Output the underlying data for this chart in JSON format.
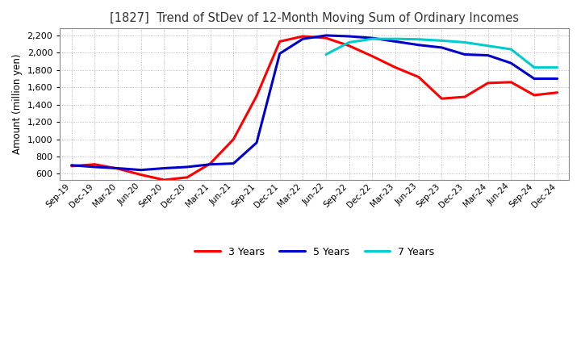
{
  "title": "[1827]  Trend of StDev of 12-Month Moving Sum of Ordinary Incomes",
  "ylabel": "Amount (million yen)",
  "ylim": [
    530,
    2280
  ],
  "yticks": [
    600,
    800,
    1000,
    1200,
    1400,
    1600,
    1800,
    2000,
    2200
  ],
  "x_labels": [
    "Sep-19",
    "Dec-19",
    "Mar-20",
    "Jun-20",
    "Sep-20",
    "Dec-20",
    "Mar-21",
    "Jun-21",
    "Sep-21",
    "Dec-21",
    "Mar-22",
    "Jun-22",
    "Sep-22",
    "Dec-22",
    "Mar-23",
    "Jun-23",
    "Sep-23",
    "Dec-23",
    "Mar-24",
    "Jun-24",
    "Sep-24",
    "Dec-24"
  ],
  "series_3yr": [
    690,
    710,
    660,
    590,
    530,
    560,
    720,
    1000,
    1500,
    2130,
    2190,
    2170,
    2080,
    1960,
    1830,
    1720,
    1470,
    1490,
    1650,
    1660,
    1510,
    1540
  ],
  "series_5yr": [
    700,
    680,
    665,
    645,
    665,
    680,
    710,
    720,
    960,
    1990,
    2160,
    2200,
    2190,
    2170,
    2130,
    2090,
    2060,
    1980,
    1970,
    1880,
    1700,
    1700
  ],
  "series_7yr": [
    null,
    null,
    null,
    null,
    null,
    null,
    null,
    null,
    null,
    null,
    null,
    1980,
    2120,
    2160,
    2160,
    2155,
    2140,
    2120,
    2080,
    2040,
    1830,
    1830
  ],
  "series_10yr": [
    null,
    null,
    null,
    null,
    null,
    null,
    null,
    null,
    null,
    null,
    null,
    null,
    null,
    null,
    null,
    null,
    null,
    null,
    null,
    null,
    null,
    null
  ],
  "color_3yr": "#ff0000",
  "color_5yr": "#0000cc",
  "color_7yr": "#00cccc",
  "color_10yr": "#008000",
  "background_color": "#ffffff",
  "grid_color": "#aaaaaa"
}
